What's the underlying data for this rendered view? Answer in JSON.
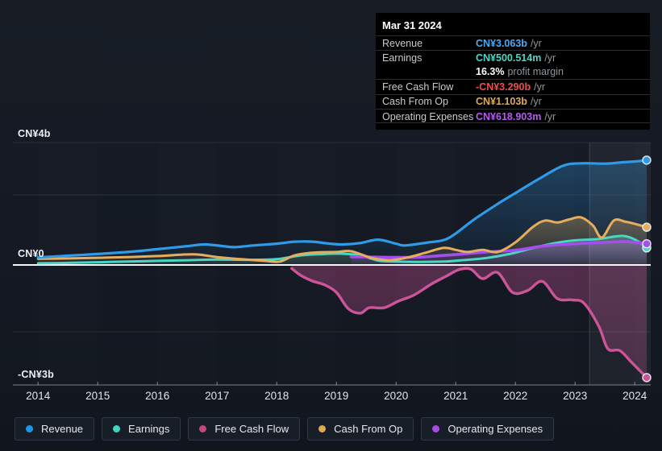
{
  "tooltip": {
    "date": "Mar 31 2024",
    "rows": [
      {
        "label": "Revenue",
        "value": "CN¥3.063b",
        "suffix": " /yr",
        "color": "#4babf2",
        "rule": true
      },
      {
        "label": "Earnings",
        "value": "CN¥500.514m",
        "suffix": " /yr",
        "color": "#4bd6c5",
        "rule": true
      },
      {
        "label": "",
        "value": "16.3%",
        "suffix": " profit margin",
        "color": "#ffffff",
        "rule": false
      },
      {
        "label": "Free Cash Flow",
        "value": "-CN¥3.290b",
        "suffix": " /yr",
        "color": "#e8504a",
        "rule": true
      },
      {
        "label": "Cash From Op",
        "value": "CN¥1.103b",
        "suffix": " /yr",
        "color": "#e2aa58",
        "rule": true
      },
      {
        "label": "Operating Expenses",
        "value": "CN¥618.903m",
        "suffix": " /yr",
        "color": "#b45cf0",
        "rule": true
      }
    ]
  },
  "legend": {
    "items": [
      {
        "key": "revenue",
        "label": "Revenue",
        "color": "#1e96e8"
      },
      {
        "key": "earnings",
        "label": "Earnings",
        "color": "#3fd6c0"
      },
      {
        "key": "free-cash-flow",
        "label": "Free Cash Flow",
        "color": "#c2487e"
      },
      {
        "key": "cash-from-op",
        "label": "Cash From Op",
        "color": "#e0a94e"
      },
      {
        "key": "operating-expenses",
        "label": "Operating Expenses",
        "color": "#a94ce6"
      }
    ]
  },
  "chart_data": {
    "type": "line",
    "units": "CN¥ billions",
    "x_ticks": [
      "2014",
      "2015",
      "2016",
      "2017",
      "2018",
      "2019",
      "2020",
      "2021",
      "2022",
      "2023",
      "2024"
    ],
    "x_range": [
      2014,
      2024.35
    ],
    "ylim": [
      -3.5,
      4
    ],
    "y_axis_labels": [
      {
        "text": "CN¥4b",
        "value": 4
      },
      {
        "text": "CN¥0",
        "value": 0
      },
      {
        "text": "-CN¥3b",
        "value": -3
      }
    ],
    "grid": true,
    "legend_position": "bottom",
    "highlight_band": {
      "from_year": 2023.25,
      "to_year": 2024.27
    },
    "series": [
      {
        "name": "Revenue",
        "key": "revenue",
        "color": "#2f9be8",
        "values": [
          [
            2014,
            0.22
          ],
          [
            2014.5,
            0.27
          ],
          [
            2015,
            0.32
          ],
          [
            2015.5,
            0.38
          ],
          [
            2016,
            0.46
          ],
          [
            2016.5,
            0.55
          ],
          [
            2016.8,
            0.6
          ],
          [
            2017.1,
            0.55
          ],
          [
            2017.3,
            0.52
          ],
          [
            2017.6,
            0.57
          ],
          [
            2018,
            0.62
          ],
          [
            2018.3,
            0.68
          ],
          [
            2018.6,
            0.68
          ],
          [
            2018.9,
            0.62
          ],
          [
            2019.1,
            0.6
          ],
          [
            2019.4,
            0.64
          ],
          [
            2019.7,
            0.74
          ],
          [
            2020,
            0.62
          ],
          [
            2020.15,
            0.57
          ],
          [
            2020.5,
            0.65
          ],
          [
            2020.8,
            0.73
          ],
          [
            2021,
            0.92
          ],
          [
            2021.3,
            1.32
          ],
          [
            2021.7,
            1.78
          ],
          [
            2022,
            2.1
          ],
          [
            2022.4,
            2.52
          ],
          [
            2022.8,
            2.9
          ],
          [
            2023.1,
            2.97
          ],
          [
            2023.5,
            2.96
          ],
          [
            2023.8,
            3.0
          ],
          [
            2024.05,
            3.03
          ],
          [
            2024.2,
            3.063
          ]
        ]
      },
      {
        "name": "Earnings",
        "key": "earnings",
        "color": "#49d6c2",
        "values": [
          [
            2014,
            0.05
          ],
          [
            2014.5,
            0.06
          ],
          [
            2015,
            0.08
          ],
          [
            2015.5,
            0.1
          ],
          [
            2016,
            0.12
          ],
          [
            2016.5,
            0.14
          ],
          [
            2017,
            0.16
          ],
          [
            2017.5,
            0.15
          ],
          [
            2018,
            0.17
          ],
          [
            2018.4,
            0.28
          ],
          [
            2018.8,
            0.32
          ],
          [
            2019.1,
            0.33
          ],
          [
            2019.4,
            0.28
          ],
          [
            2019.7,
            0.13
          ],
          [
            2020,
            0.1
          ],
          [
            2020.4,
            0.09
          ],
          [
            2020.8,
            0.1
          ],
          [
            2021.1,
            0.14
          ],
          [
            2021.5,
            0.2
          ],
          [
            2021.9,
            0.32
          ],
          [
            2022.3,
            0.5
          ],
          [
            2022.7,
            0.65
          ],
          [
            2023,
            0.72
          ],
          [
            2023.4,
            0.76
          ],
          [
            2023.8,
            0.85
          ],
          [
            2024.05,
            0.7
          ],
          [
            2024.2,
            0.5
          ]
        ]
      },
      {
        "name": "Operating Expenses",
        "key": "operating-expenses",
        "color": "#a44ef0",
        "values": [
          [
            2019.25,
            0.24
          ],
          [
            2019.6,
            0.23
          ],
          [
            2020,
            0.22
          ],
          [
            2020.4,
            0.23
          ],
          [
            2020.8,
            0.28
          ],
          [
            2021.1,
            0.32
          ],
          [
            2021.5,
            0.38
          ],
          [
            2022,
            0.43
          ],
          [
            2022.4,
            0.54
          ],
          [
            2022.8,
            0.6
          ],
          [
            2023.2,
            0.64
          ],
          [
            2023.6,
            0.67
          ],
          [
            2023.9,
            0.68
          ],
          [
            2024.2,
            0.619
          ]
        ]
      },
      {
        "name": "Cash From Op",
        "key": "cash-from-op",
        "color": "#e5ad5c",
        "values": [
          [
            2014,
            0.18
          ],
          [
            2014.5,
            0.19
          ],
          [
            2015,
            0.21
          ],
          [
            2015.5,
            0.23
          ],
          [
            2016,
            0.26
          ],
          [
            2016.6,
            0.31
          ],
          [
            2017,
            0.23
          ],
          [
            2017.4,
            0.17
          ],
          [
            2017.8,
            0.12
          ],
          [
            2018.05,
            0.1
          ],
          [
            2018.3,
            0.28
          ],
          [
            2018.6,
            0.36
          ],
          [
            2019,
            0.38
          ],
          [
            2019.25,
            0.4
          ],
          [
            2019.6,
            0.2
          ],
          [
            2019.9,
            0.14
          ],
          [
            2020.2,
            0.22
          ],
          [
            2020.5,
            0.36
          ],
          [
            2020.8,
            0.5
          ],
          [
            2021,
            0.44
          ],
          [
            2021.2,
            0.38
          ],
          [
            2021.45,
            0.44
          ],
          [
            2021.7,
            0.38
          ],
          [
            2022,
            0.66
          ],
          [
            2022.3,
            1.12
          ],
          [
            2022.5,
            1.3
          ],
          [
            2022.7,
            1.24
          ],
          [
            2022.9,
            1.33
          ],
          [
            2023.1,
            1.39
          ],
          [
            2023.3,
            1.15
          ],
          [
            2023.45,
            0.8
          ],
          [
            2023.65,
            1.3
          ],
          [
            2023.85,
            1.26
          ],
          [
            2024.05,
            1.18
          ],
          [
            2024.2,
            1.103
          ]
        ]
      },
      {
        "name": "Free Cash Flow",
        "key": "free-cash-flow",
        "color": "#cc5499",
        "values": [
          [
            2018.25,
            -0.1
          ],
          [
            2018.4,
            -0.3
          ],
          [
            2018.6,
            -0.47
          ],
          [
            2018.8,
            -0.58
          ],
          [
            2019,
            -0.8
          ],
          [
            2019.2,
            -1.28
          ],
          [
            2019.4,
            -1.41
          ],
          [
            2019.55,
            -1.25
          ],
          [
            2019.8,
            -1.25
          ],
          [
            2020.05,
            -1.05
          ],
          [
            2020.3,
            -0.88
          ],
          [
            2020.6,
            -0.55
          ],
          [
            2020.85,
            -0.32
          ],
          [
            2021.05,
            -0.14
          ],
          [
            2021.25,
            -0.12
          ],
          [
            2021.45,
            -0.4
          ],
          [
            2021.7,
            -0.22
          ],
          [
            2021.95,
            -0.8
          ],
          [
            2022.2,
            -0.75
          ],
          [
            2022.45,
            -0.48
          ],
          [
            2022.7,
            -0.98
          ],
          [
            2022.95,
            -1.02
          ],
          [
            2023.15,
            -1.12
          ],
          [
            2023.4,
            -1.8
          ],
          [
            2023.55,
            -2.45
          ],
          [
            2023.75,
            -2.5
          ],
          [
            2023.95,
            -2.85
          ],
          [
            2024.2,
            -3.29
          ]
        ]
      }
    ]
  }
}
